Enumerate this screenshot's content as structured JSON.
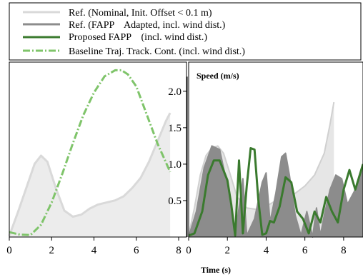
{
  "legend": {
    "entries": [
      {
        "label": "Ref. (Nominal, Init. Offset < 0.1 m)",
        "color": "#d9d9d9",
        "style": "solid"
      },
      {
        "label": "Ref. (FAPP    Adapted, incl. wind dist.)",
        "color": "#8c8c8c",
        "style": "solid"
      },
      {
        "label": "Proposed FAPP    (incl. wind dist.)",
        "color": "#3a7a2e",
        "style": "solid"
      },
      {
        "label": "Baseline Traj. Track. Cont. (incl. wind dist.)",
        "color": "#7fc46a",
        "style": "dashdot"
      }
    ]
  },
  "xlabel": "Time (s)",
  "chart_data": [
    {
      "type": "area",
      "panel": "left",
      "xlim": [
        0,
        8
      ],
      "xticks": [
        "0",
        "2",
        "4",
        "6",
        "8"
      ],
      "series": [
        {
          "name": "Ref. (Nominal, Init. Offset < 0.1 m)",
          "color": "#d9d9d9",
          "x": [
            0,
            0.4,
            0.8,
            1.2,
            1.5,
            1.8,
            2.2,
            2.6,
            3.0,
            3.4,
            3.8,
            4.2,
            4.6,
            5.0,
            5.4,
            5.8,
            6.2,
            6.6,
            7.0,
            7.4,
            7.6
          ],
          "y": [
            0.03,
            0.6,
            1.2,
            1.8,
            2.0,
            1.85,
            1.2,
            0.65,
            0.5,
            0.55,
            0.7,
            0.8,
            0.85,
            0.9,
            1.0,
            1.2,
            1.45,
            1.85,
            2.35,
            2.85,
            3.05
          ]
        },
        {
          "name": "Baseline Traj. Track. Cont. (incl. wind dist.)",
          "color": "#7fc46a",
          "style": "dashdot",
          "x": [
            0,
            0.5,
            1.0,
            1.5,
            2.0,
            2.5,
            3.0,
            3.5,
            4.0,
            4.5,
            5.0,
            5.3,
            5.6,
            6.0,
            6.5,
            7.0,
            7.6
          ],
          "y": [
            0.12,
            0.06,
            0.05,
            0.3,
            0.85,
            1.55,
            2.3,
            3.0,
            3.55,
            3.95,
            4.1,
            4.1,
            4.0,
            3.7,
            3.0,
            2.3,
            1.6
          ]
        }
      ]
    },
    {
      "type": "area",
      "panel": "right",
      "title": "Speed (m/s)",
      "xlim": [
        0,
        9
      ],
      "ylim": [
        0,
        2.4
      ],
      "xticks": [
        "0",
        "2",
        "4",
        "6",
        "8"
      ],
      "yticks": [
        "0.5",
        "1.0",
        "1.5",
        "2.0"
      ],
      "series": [
        {
          "name": "Ref. (Nominal, Init. Offset < 0.1 m)",
          "color": "#d9d9d9",
          "x": [
            0,
            0.3,
            0.6,
            0.9,
            1.2,
            1.5,
            1.8,
            2.1,
            2.5,
            3.0,
            3.5,
            4.0,
            4.5,
            5.0,
            5.5,
            6.0,
            6.5,
            7.0,
            7.3,
            7.5
          ],
          "y": [
            0.02,
            0.4,
            0.85,
            1.12,
            1.22,
            1.25,
            1.15,
            0.9,
            0.55,
            0.4,
            0.38,
            0.42,
            0.5,
            0.55,
            0.6,
            0.7,
            0.85,
            1.15,
            1.55,
            1.85
          ]
        },
        {
          "name": "Ref. (FAPP    Adapted, incl. wind dist.)",
          "color": "#8c8c8c",
          "x": [
            0,
            0.4,
            0.8,
            1.2,
            1.6,
            2.0,
            2.4,
            2.6,
            2.8,
            3.0,
            3.4,
            3.8,
            4.0,
            4.2,
            4.5,
            4.8,
            5.0,
            5.2,
            5.5,
            5.8,
            6.1,
            6.4,
            6.6,
            6.8,
            7.0,
            7.3,
            7.6,
            7.9,
            8.2,
            8.6,
            9.0
          ],
          "y": [
            0.0,
            0.35,
            0.95,
            1.25,
            1.2,
            0.7,
            0.02,
            0.4,
            0.8,
            0.02,
            0.25,
            0.75,
            0.88,
            0.2,
            0.6,
            1.1,
            1.15,
            0.85,
            0.3,
            0.02,
            0.35,
            0.0,
            0.4,
            0.02,
            0.3,
            0.65,
            0.85,
            0.8,
            0.45,
            0.65,
            1.0
          ]
        },
        {
          "name": "Proposed FAPP    (incl. wind dist.)",
          "color": "#3a7a2e",
          "x": [
            0,
            0.3,
            0.7,
            1.0,
            1.3,
            1.6,
            2.0,
            2.2,
            2.4,
            2.6,
            2.8,
            3.0,
            3.2,
            3.4,
            3.6,
            3.8,
            4.0,
            4.2,
            4.4,
            4.7,
            5.0,
            5.3,
            5.6,
            5.9,
            6.2,
            6.5,
            6.8,
            7.1,
            7.4,
            7.7,
            8.0,
            8.3,
            8.6,
            9.0
          ],
          "y": [
            0.02,
            0.05,
            0.35,
            0.85,
            1.05,
            1.05,
            0.78,
            0.45,
            0.02,
            1.05,
            0.05,
            0.7,
            1.22,
            1.2,
            0.5,
            0.03,
            0.05,
            0.22,
            0.2,
            0.42,
            0.82,
            0.75,
            0.35,
            0.25,
            0.05,
            0.35,
            0.2,
            0.55,
            0.35,
            0.2,
            0.65,
            0.92,
            0.65,
            1.0
          ]
        }
      ]
    }
  ]
}
